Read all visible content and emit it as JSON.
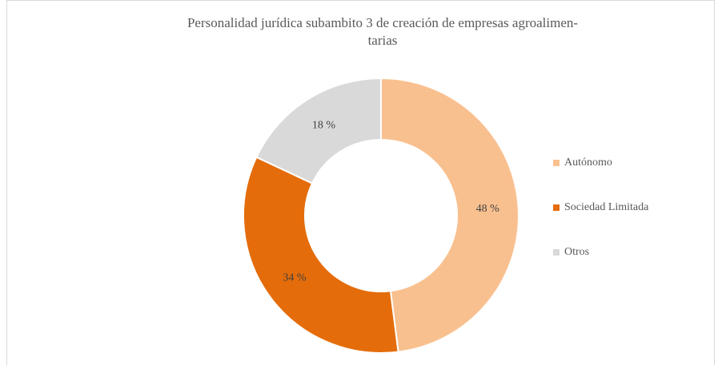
{
  "chart_data": {
    "type": "donut",
    "title": [
      "Personalidad jurídica subambito 3 de creación de empresas agroalimen-",
      "tarias"
    ],
    "categories": [
      "Autónomo",
      "Sociedad Limitada",
      "Otros"
    ],
    "values": [
      48,
      34,
      18
    ],
    "value_labels": [
      "48 %",
      "34 %",
      "18 %"
    ],
    "colors": [
      "#f9c08f",
      "#e46c0a",
      "#d9d9d9"
    ],
    "legend": "right"
  }
}
